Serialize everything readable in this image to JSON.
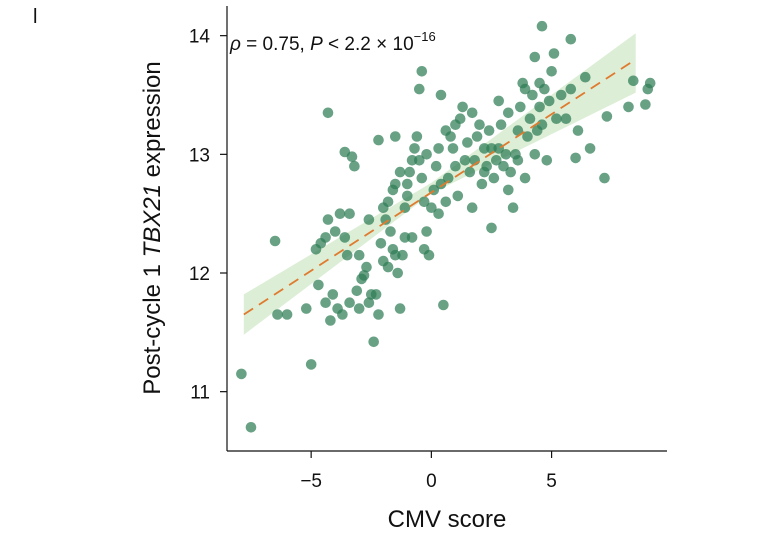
{
  "panel_label": "l",
  "chart_data": {
    "type": "scatter",
    "title": "",
    "xlabel": "CMV score",
    "ylabel_parts": [
      "Post-cycle 1 ",
      "TBX21",
      " expression"
    ],
    "xlim": [
      -8.5,
      9.8
    ],
    "ylim": [
      10.5,
      14.25
    ],
    "xticks": [
      -5,
      0,
      5
    ],
    "xtick_labels": [
      "−5",
      "0",
      "5"
    ],
    "yticks": [
      11,
      12,
      13,
      14
    ],
    "ytick_labels": [
      "11",
      "12",
      "13",
      "14"
    ],
    "annotation": {
      "rho_symbol": "ρ",
      "rho_text": " = 0.75, ",
      "p_symbol": "P",
      "p_text": " < 2.2 × 10",
      "p_exponent": "−16"
    },
    "colors": {
      "points": "#2e7d55",
      "fit_line": "#e07a2e",
      "ci_band": "#d6ebcf",
      "axis": "#111111"
    },
    "fit": {
      "x": [
        -7.8,
        8.5
      ],
      "y": [
        11.65,
        13.8
      ]
    },
    "ci_band": {
      "x": [
        -7.8,
        0,
        8.5
      ],
      "lower": [
        11.48,
        12.67,
        13.52
      ],
      "upper": [
        11.82,
        12.76,
        14.02
      ]
    },
    "points": [
      [
        -7.9,
        11.15
      ],
      [
        -7.5,
        10.7
      ],
      [
        -6.5,
        12.27
      ],
      [
        -6.4,
        11.65
      ],
      [
        -6.0,
        11.65
      ],
      [
        -5.0,
        11.23
      ],
      [
        -5.2,
        11.7
      ],
      [
        -4.8,
        12.2
      ],
      [
        -4.6,
        12.25
      ],
      [
        -4.4,
        11.75
      ],
      [
        -4.2,
        11.6
      ],
      [
        -4.1,
        11.82
      ],
      [
        -3.9,
        11.7
      ],
      [
        -3.7,
        11.65
      ],
      [
        -4.4,
        12.3
      ],
      [
        -4.3,
        12.45
      ],
      [
        -4.0,
        12.35
      ],
      [
        -3.8,
        12.5
      ],
      [
        -3.6,
        12.3
      ],
      [
        -3.5,
        12.15
      ],
      [
        -3.4,
        12.5
      ],
      [
        -4.3,
        13.35
      ],
      [
        -3.6,
        13.02
      ],
      [
        -3.3,
        12.98
      ],
      [
        -3.2,
        12.9
      ],
      [
        -3.0,
        11.7
      ],
      [
        -2.9,
        11.95
      ],
      [
        -2.8,
        11.98
      ],
      [
        -2.7,
        12.05
      ],
      [
        -2.6,
        11.75
      ],
      [
        -2.5,
        11.82
      ],
      [
        -2.4,
        11.42
      ],
      [
        -2.3,
        11.82
      ],
      [
        -2.2,
        11.65
      ],
      [
        -2.1,
        12.25
      ],
      [
        -2.0,
        12.1
      ],
      [
        -1.8,
        12.05
      ],
      [
        -1.7,
        12.35
      ],
      [
        -1.6,
        12.2
      ],
      [
        -1.5,
        12.15
      ],
      [
        -1.4,
        12.0
      ],
      [
        -1.3,
        11.7
      ],
      [
        -2.0,
        12.55
      ],
      [
        -1.8,
        12.6
      ],
      [
        -1.6,
        12.7
      ],
      [
        -1.5,
        12.75
      ],
      [
        -1.3,
        12.85
      ],
      [
        -2.2,
        13.12
      ],
      [
        -1.5,
        13.15
      ],
      [
        -1.1,
        12.3
      ],
      [
        -1.1,
        12.55
      ],
      [
        -1.0,
        12.65
      ],
      [
        -0.9,
        12.85
      ],
      [
        -0.8,
        12.95
      ],
      [
        -0.7,
        13.05
      ],
      [
        -0.6,
        13.15
      ],
      [
        -0.5,
        12.95
      ],
      [
        -0.4,
        12.8
      ],
      [
        -0.3,
        12.6
      ],
      [
        -0.3,
        12.2
      ],
      [
        -0.2,
        12.35
      ],
      [
        -0.1,
        12.15
      ],
      [
        0.0,
        12.55
      ],
      [
        0.1,
        12.7
      ],
      [
        0.2,
        12.9
      ],
      [
        0.3,
        13.05
      ],
      [
        0.4,
        12.75
      ],
      [
        0.5,
        11.73
      ],
      [
        0.6,
        12.6
      ],
      [
        0.7,
        12.8
      ],
      [
        0.8,
        13.15
      ],
      [
        0.9,
        13.05
      ],
      [
        1.0,
        12.9
      ],
      [
        1.1,
        12.65
      ],
      [
        1.2,
        13.3
      ],
      [
        1.3,
        13.4
      ],
      [
        1.5,
        13.1
      ],
      [
        1.6,
        12.85
      ],
      [
        1.7,
        12.55
      ],
      [
        1.8,
        12.95
      ],
      [
        1.9,
        13.15
      ],
      [
        2.0,
        13.25
      ],
      [
        2.1,
        12.75
      ],
      [
        2.2,
        13.05
      ],
      [
        2.3,
        12.9
      ],
      [
        2.4,
        13.2
      ],
      [
        2.5,
        12.38
      ],
      [
        2.6,
        12.8
      ],
      [
        2.7,
        12.95
      ],
      [
        2.8,
        13.05
      ],
      [
        2.9,
        13.25
      ],
      [
        3.0,
        12.9
      ],
      [
        3.1,
        13.0
      ],
      [
        3.2,
        13.35
      ],
      [
        3.3,
        12.85
      ],
      [
        3.4,
        12.55
      ],
      [
        3.5,
        13.0
      ],
      [
        3.6,
        13.2
      ],
      [
        3.7,
        13.4
      ],
      [
        3.8,
        13.6
      ],
      [
        3.9,
        12.8
      ],
      [
        4.0,
        13.15
      ],
      [
        4.1,
        13.3
      ],
      [
        4.2,
        13.5
      ],
      [
        4.3,
        13.0
      ],
      [
        4.4,
        13.2
      ],
      [
        4.5,
        13.4
      ],
      [
        4.6,
        13.25
      ],
      [
        4.7,
        13.55
      ],
      [
        4.8,
        12.95
      ],
      [
        4.9,
        13.45
      ],
      [
        5.0,
        13.7
      ],
      [
        5.1,
        13.85
      ],
      [
        5.2,
        13.3
      ],
      [
        5.4,
        13.5
      ],
      [
        5.6,
        13.3
      ],
      [
        5.8,
        13.55
      ],
      [
        6.0,
        12.97
      ],
      [
        6.1,
        13.2
      ],
      [
        6.4,
        13.65
      ],
      [
        6.6,
        13.05
      ],
      [
        7.2,
        12.8
      ],
      [
        7.3,
        13.32
      ],
      [
        8.2,
        13.4
      ],
      [
        8.4,
        13.62
      ],
      [
        8.9,
        13.42
      ],
      [
        9.0,
        13.55
      ],
      [
        9.1,
        13.6
      ],
      [
        4.6,
        14.08
      ],
      [
        5.8,
        13.97
      ],
      [
        4.3,
        13.82
      ],
      [
        4.5,
        13.6
      ],
      [
        0.4,
        13.5
      ],
      [
        -0.5,
        13.55
      ],
      [
        -0.4,
        13.7
      ],
      [
        3.9,
        13.55
      ],
      [
        -1.0,
        12.75
      ],
      [
        -0.8,
        12.3
      ],
      [
        0.6,
        13.2
      ],
      [
        1.4,
        12.95
      ],
      [
        2.8,
        13.45
      ],
      [
        3.2,
        12.7
      ],
      [
        -2.6,
        12.45
      ],
      [
        -3.0,
        12.15
      ],
      [
        -1.9,
        12.45
      ],
      [
        1.0,
        13.25
      ],
      [
        2.5,
        13.05
      ],
      [
        3.6,
        12.95
      ],
      [
        -0.2,
        13.0
      ],
      [
        0.3,
        12.5
      ],
      [
        -1.2,
        12.15
      ],
      [
        -3.1,
        11.85
      ],
      [
        -4.7,
        11.9
      ],
      [
        -3.4,
        11.75
      ],
      [
        1.7,
        13.35
      ],
      [
        2.2,
        12.85
      ]
    ]
  }
}
